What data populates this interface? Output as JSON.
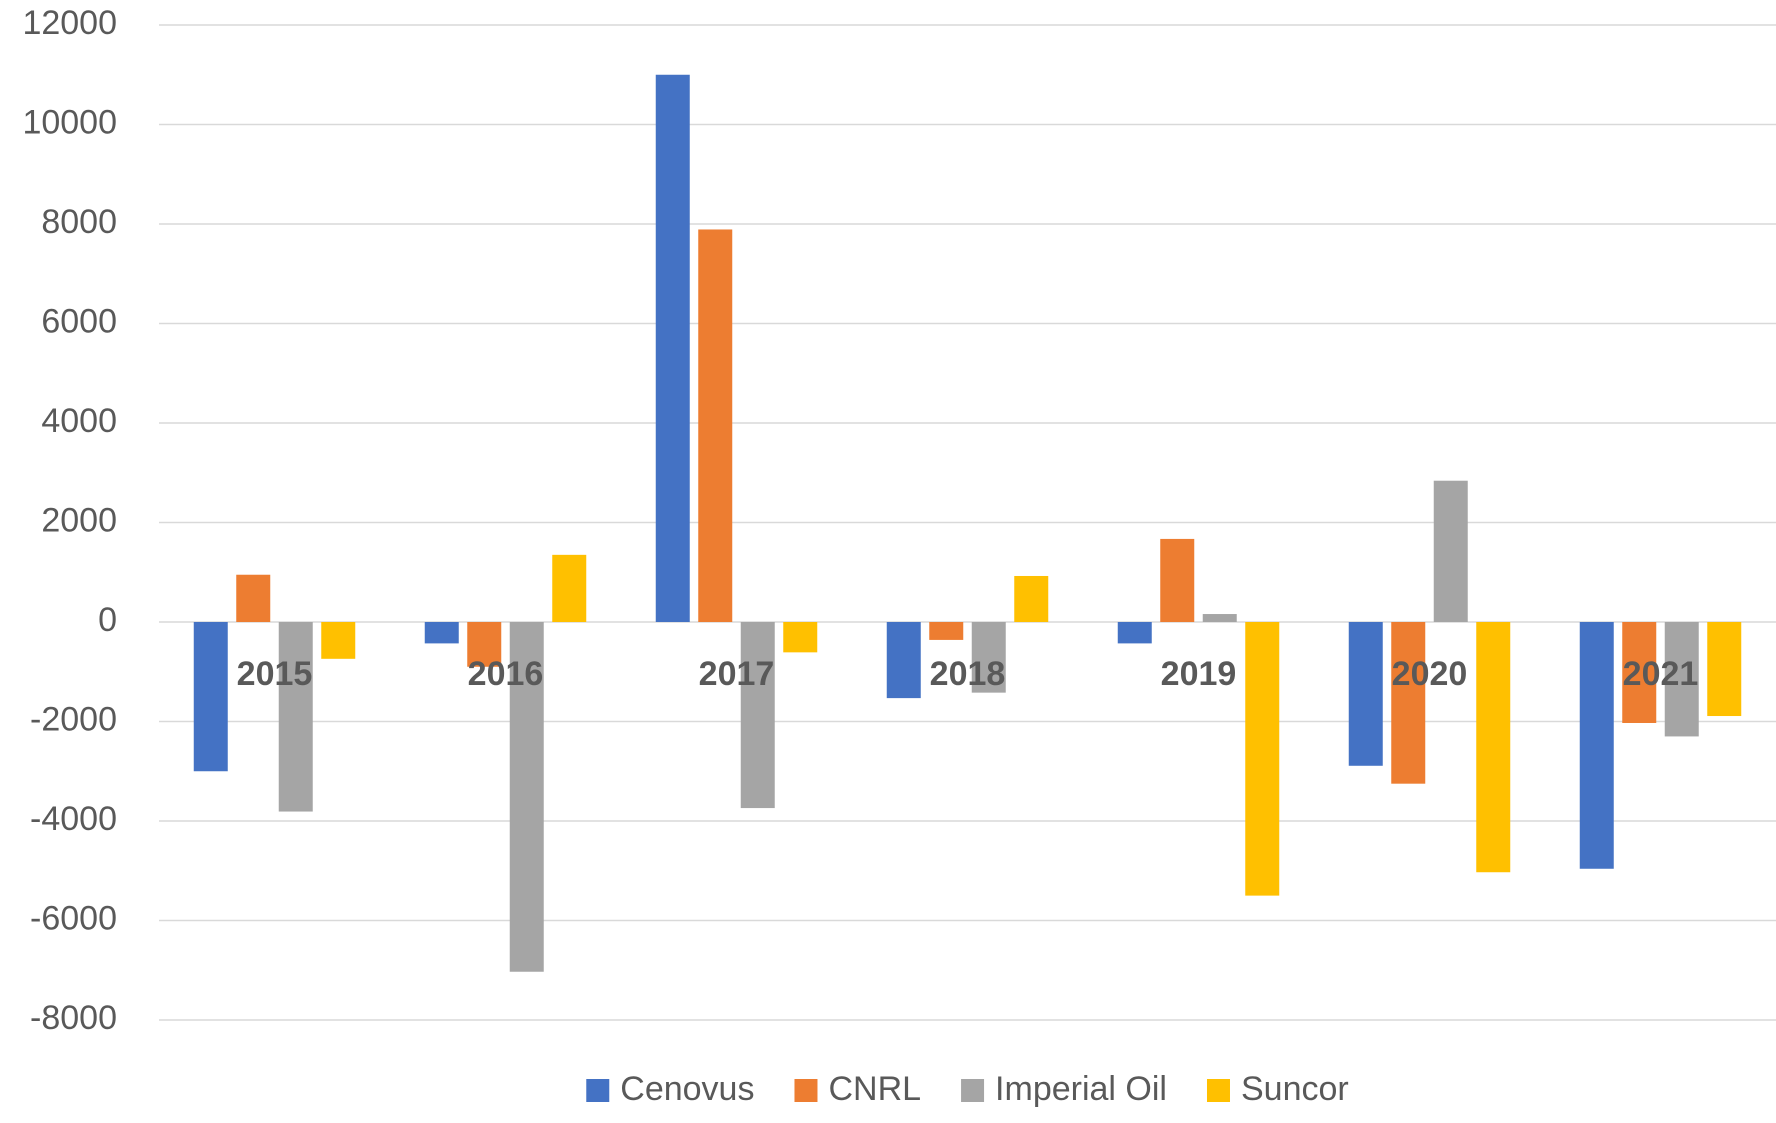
{
  "chart_data": {
    "type": "bar",
    "categories": [
      "2015",
      "2016",
      "2017",
      "2018",
      "2019",
      "2020",
      "2021"
    ],
    "series": [
      {
        "name": "Cenovus",
        "color": "#4472c4",
        "values": [
          -3000,
          -430,
          11000,
          -1530,
          -430,
          -2890,
          -4960
        ]
      },
      {
        "name": "CNRL",
        "color": "#ed7d31",
        "values": [
          950,
          -900,
          7890,
          -360,
          1670,
          -3250,
          -2030
        ]
      },
      {
        "name": "Imperial Oil",
        "color": "#a5a5a5",
        "values": [
          -3810,
          -7030,
          -3740,
          -1420,
          160,
          2840,
          -2300
        ]
      },
      {
        "name": "Suncor",
        "color": "#ffc000",
        "values": [
          -740,
          1350,
          -610,
          925,
          -5500,
          -5030,
          -1890
        ]
      }
    ],
    "ylim": [
      -8000,
      12000
    ],
    "yticks": [
      -8000,
      -6000,
      -4000,
      -2000,
      0,
      2000,
      4000,
      6000,
      8000,
      10000,
      12000
    ],
    "grid": true,
    "legend": "bottom"
  }
}
